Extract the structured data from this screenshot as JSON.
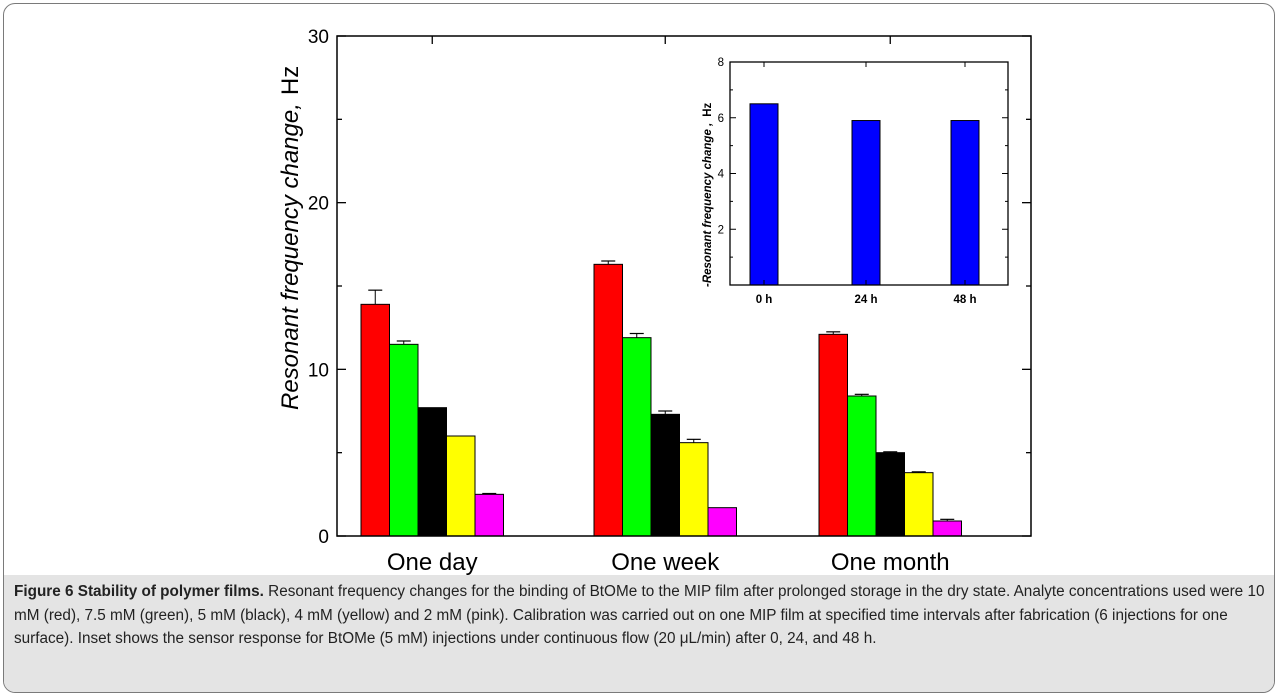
{
  "chart_data": [
    {
      "type": "bar",
      "title": "",
      "xlabel": "",
      "ylabel_text": "Resonant frequency  change,",
      "ylabel_unit": "Hz",
      "categories": [
        "One day",
        "One week",
        "One month"
      ],
      "ylim": [
        0,
        30
      ],
      "yticks": [
        0,
        10,
        20,
        30
      ],
      "error_bars": true,
      "series": [
        {
          "color": "#ff0000",
          "values": [
            13.9,
            16.3,
            12.1
          ],
          "errors": [
            0.85,
            0.2,
            0.15
          ]
        },
        {
          "color": "#00ff00",
          "values": [
            11.5,
            11.9,
            8.4
          ],
          "errors": [
            0.2,
            0.25,
            0.1
          ]
        },
        {
          "color": "#000000",
          "values": [
            7.7,
            7.3,
            5.0
          ],
          "errors": [
            0.0,
            0.2,
            0.05
          ]
        },
        {
          "color": "#ffff00",
          "values": [
            6.0,
            5.6,
            3.8
          ],
          "errors": [
            0.0,
            0.2,
            0.05
          ]
        },
        {
          "color": "#ff00ff",
          "values": [
            2.5,
            1.7,
            0.9
          ],
          "errors": [
            0.05,
            0.0,
            0.1
          ]
        }
      ]
    },
    {
      "type": "bar",
      "title": "",
      "xlabel": "",
      "ylabel_text": "-Resonant frequency  change ,",
      "ylabel_unit": "Hz",
      "categories": [
        "0 h",
        "24 h",
        "48 h"
      ],
      "ylim": [
        0,
        8
      ],
      "yticks": [
        2,
        4,
        6,
        8
      ],
      "series": [
        {
          "color": "#0000ff",
          "values": [
            6.5,
            5.9,
            5.9
          ]
        }
      ]
    }
  ],
  "caption": {
    "label": "Figure 6 Stability of polymer films.",
    "text": " Resonant frequency changes for the binding of BtOMe to the MIP film after prolonged storage in the dry state. Analyte concentrations used were 10 mM (red), 7.5 mM (green), 5 mM (black), 4 mM (yellow) and 2 mM (pink). Calibration was carried out on one MIP film at specified time intervals after fabrication (6 injections for one surface). Inset shows the sensor response for BtOMe (5 mM) injections under continuous flow (20 μL/min) after 0, 24, and 48 h."
  }
}
